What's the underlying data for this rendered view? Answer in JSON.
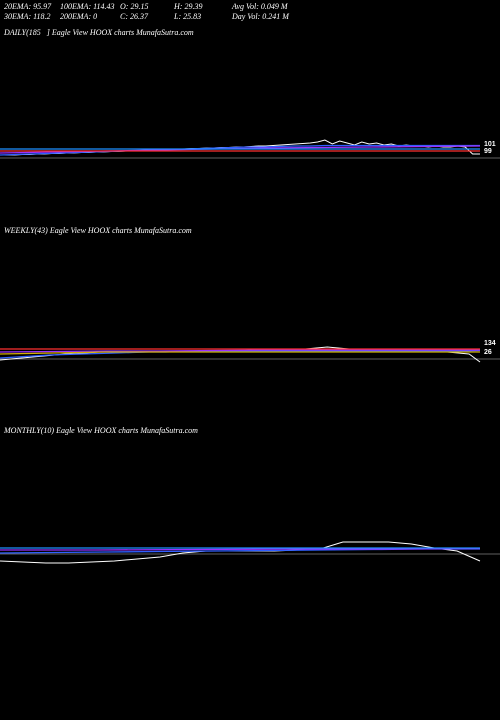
{
  "header": {
    "row1": [
      "20EMA: 95.97",
      "100EMA: 114.43",
      "O: 29.15",
      "H: 29.39",
      "Avg Vol: 0.049 M"
    ],
    "row2": [
      "30EMA: 118.2",
      "200EMA: 0",
      "C: 26.37",
      "L: 25.83",
      "Day Vol: 0.241 M"
    ]
  },
  "panels": {
    "daily": {
      "label": "DAILY(185",
      "source": "] Eagle  View  HOOX  charts MunafaSutra.com"
    },
    "weekly": {
      "label": "WEEKLY(43) Eagle  View  HOOX  charts MunafaSutra.com"
    },
    "monthly": {
      "label": "MONTHLY(10) Eagle  View  HOOX  charts MunafaSutra.com"
    }
  },
  "chart_data": [
    {
      "type": "line",
      "name": "daily",
      "value_tags": [
        "101",
        "99"
      ],
      "series": [
        {
          "name": "price",
          "color": "#ffffff",
          "values": [
            0,
            0,
            0,
            0.5,
            0.5,
            1,
            1,
            1.5,
            1.5,
            2,
            2,
            2.5,
            2.5,
            3,
            3,
            3.5,
            3.5,
            4,
            4,
            4.5,
            5,
            5,
            5.5,
            5.5,
            6,
            6,
            6.5,
            6.5,
            7,
            7,
            7.5,
            7.5,
            8,
            8,
            8.5,
            9,
            9,
            9.5,
            10,
            10.5,
            11,
            11.5,
            12,
            13,
            15,
            11,
            14,
            12,
            10,
            13,
            11,
            12,
            10,
            11,
            9,
            10,
            9,
            9,
            8,
            9,
            8,
            8,
            9,
            8,
            1,
            1
          ]
        },
        {
          "name": "ema-short",
          "color": "#3060ff",
          "values": [
            0,
            0.5,
            1,
            1.5,
            2,
            2.5,
            3,
            3.5,
            4,
            4.5,
            5,
            5.5,
            6,
            6.5,
            7,
            7.5,
            8,
            8,
            8.5,
            9,
            9,
            9.5,
            9.5,
            9.5,
            9.5,
            9.5,
            9.5,
            9.5,
            9.5,
            9.5,
            9.5,
            9.5
          ]
        },
        {
          "name": "ema-long",
          "color": "#9b30ff",
          "values": [
            2,
            3,
            4,
            5,
            6,
            7,
            7.5,
            8,
            8.5,
            9
          ]
        },
        {
          "name": "ema-mid",
          "color": "#ff3030",
          "values": [
            4,
            4,
            4,
            4,
            4
          ]
        },
        {
          "name": "band",
          "color": "#1e90ff",
          "values": [
            6,
            6
          ]
        }
      ]
    },
    {
      "type": "line",
      "name": "weekly",
      "value_tags": [
        "134",
        "26"
      ],
      "series": [
        {
          "name": "price",
          "color": "#ffffff",
          "values": [
            -4,
            -3,
            -2,
            -1,
            0,
            1,
            2,
            3,
            3,
            4,
            4,
            5,
            5,
            5,
            5,
            4,
            5,
            4,
            5,
            5,
            4,
            5,
            5,
            6,
            5,
            6,
            7,
            7,
            7,
            8,
            9,
            8,
            7,
            7,
            6,
            6,
            5,
            5,
            6,
            4,
            5,
            4,
            3,
            2,
            -6
          ]
        },
        {
          "name": "ema-short",
          "color": "#3060ff",
          "values": [
            -2,
            -1,
            0,
            1,
            1.5,
            2,
            2.5,
            3,
            3.5,
            4,
            4,
            4.5,
            4.5,
            5,
            5,
            5,
            5,
            5,
            5,
            5,
            5,
            5,
            5,
            5,
            5,
            5,
            5,
            5,
            5,
            5.5
          ]
        },
        {
          "name": "ema-long",
          "color": "#9b30ff",
          "values": [
            4,
            4.5,
            5,
            5,
            5.5,
            6,
            6,
            6,
            6,
            6
          ]
        },
        {
          "name": "ema-mid",
          "color": "#ff3030",
          "values": [
            7,
            7,
            7,
            7,
            7
          ]
        },
        {
          "name": "yellow",
          "color": "#d4b000",
          "values": [
            2,
            3,
            4,
            4,
            4,
            4,
            4,
            4,
            4,
            4
          ]
        }
      ]
    },
    {
      "type": "line",
      "name": "monthly",
      "series": [
        {
          "name": "price",
          "color": "#ffffff",
          "values": [
            -10,
            -11,
            -12,
            -12,
            -11,
            -10,
            -8,
            -6,
            -2,
            0,
            0,
            0,
            0,
            1,
            2,
            9,
            9,
            9,
            7,
            3,
            0,
            -10
          ]
        },
        {
          "name": "ema-short",
          "color": "#3060ff",
          "values": [
            -2,
            -1.5,
            -1,
            -0.5,
            0,
            0.5,
            1,
            1.5,
            2,
            2
          ]
        },
        {
          "name": "ema-long",
          "color": "#9b30ff",
          "values": [
            1,
            1,
            1.5,
            2,
            2,
            2.5
          ]
        },
        {
          "name": "band",
          "color": "#1e90ff",
          "values": [
            3,
            3
          ]
        }
      ]
    }
  ]
}
